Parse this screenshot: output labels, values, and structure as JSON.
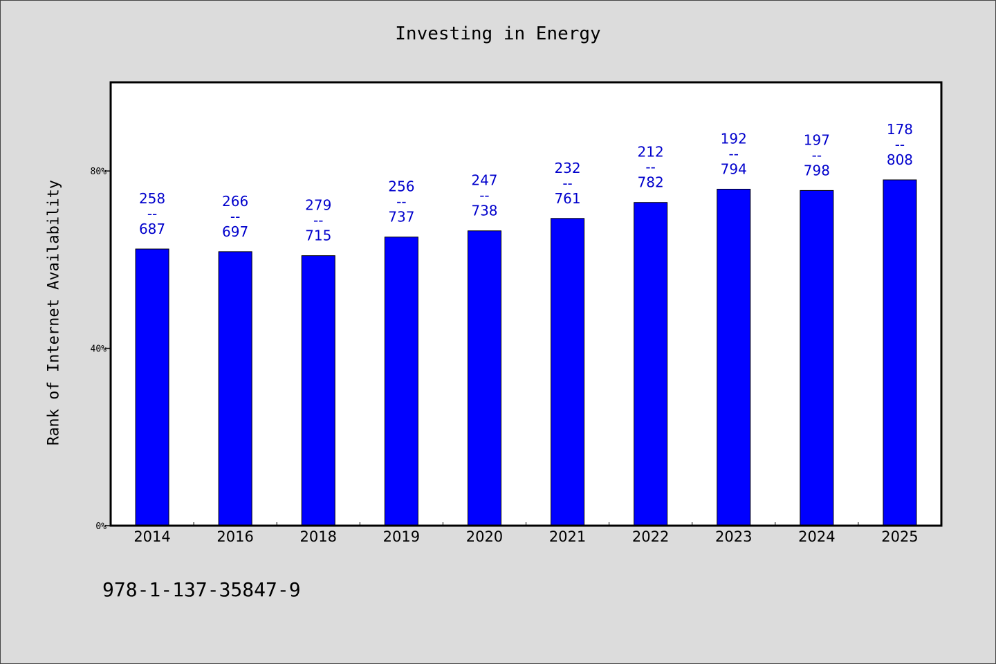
{
  "chart_data": {
    "type": "bar",
    "title": "Investing in Energy",
    "ylabel": "Rank of Internet Availability",
    "xlabel": "",
    "categories": [
      "2014",
      "2016",
      "2018",
      "2019",
      "2020",
      "2021",
      "2022",
      "2023",
      "2024",
      "2025"
    ],
    "values": [
      62.4,
      61.8,
      60.9,
      65.1,
      66.5,
      69.3,
      72.9,
      75.9,
      75.6,
      78.0
    ],
    "value_unit": "%",
    "data_labels": [
      [
        "258",
        "--",
        "687"
      ],
      [
        "266",
        "--",
        "697"
      ],
      [
        "279",
        "--",
        "715"
      ],
      [
        "256",
        "--",
        "737"
      ],
      [
        "247",
        "--",
        "738"
      ],
      [
        "232",
        "--",
        "761"
      ],
      [
        "212",
        "--",
        "782"
      ],
      [
        "192",
        "--",
        "794"
      ],
      [
        "197",
        "--",
        "798"
      ],
      [
        "178",
        "--",
        "808"
      ]
    ],
    "ylim": [
      0,
      100
    ],
    "yticks": [
      0,
      40,
      80
    ],
    "ytick_labels": [
      "0%",
      "40%",
      "80%"
    ],
    "grid": false,
    "bar_color": "#0000ff",
    "label_color": "#0000cc"
  },
  "footer": {
    "code": "978-1-137-35847-9"
  }
}
